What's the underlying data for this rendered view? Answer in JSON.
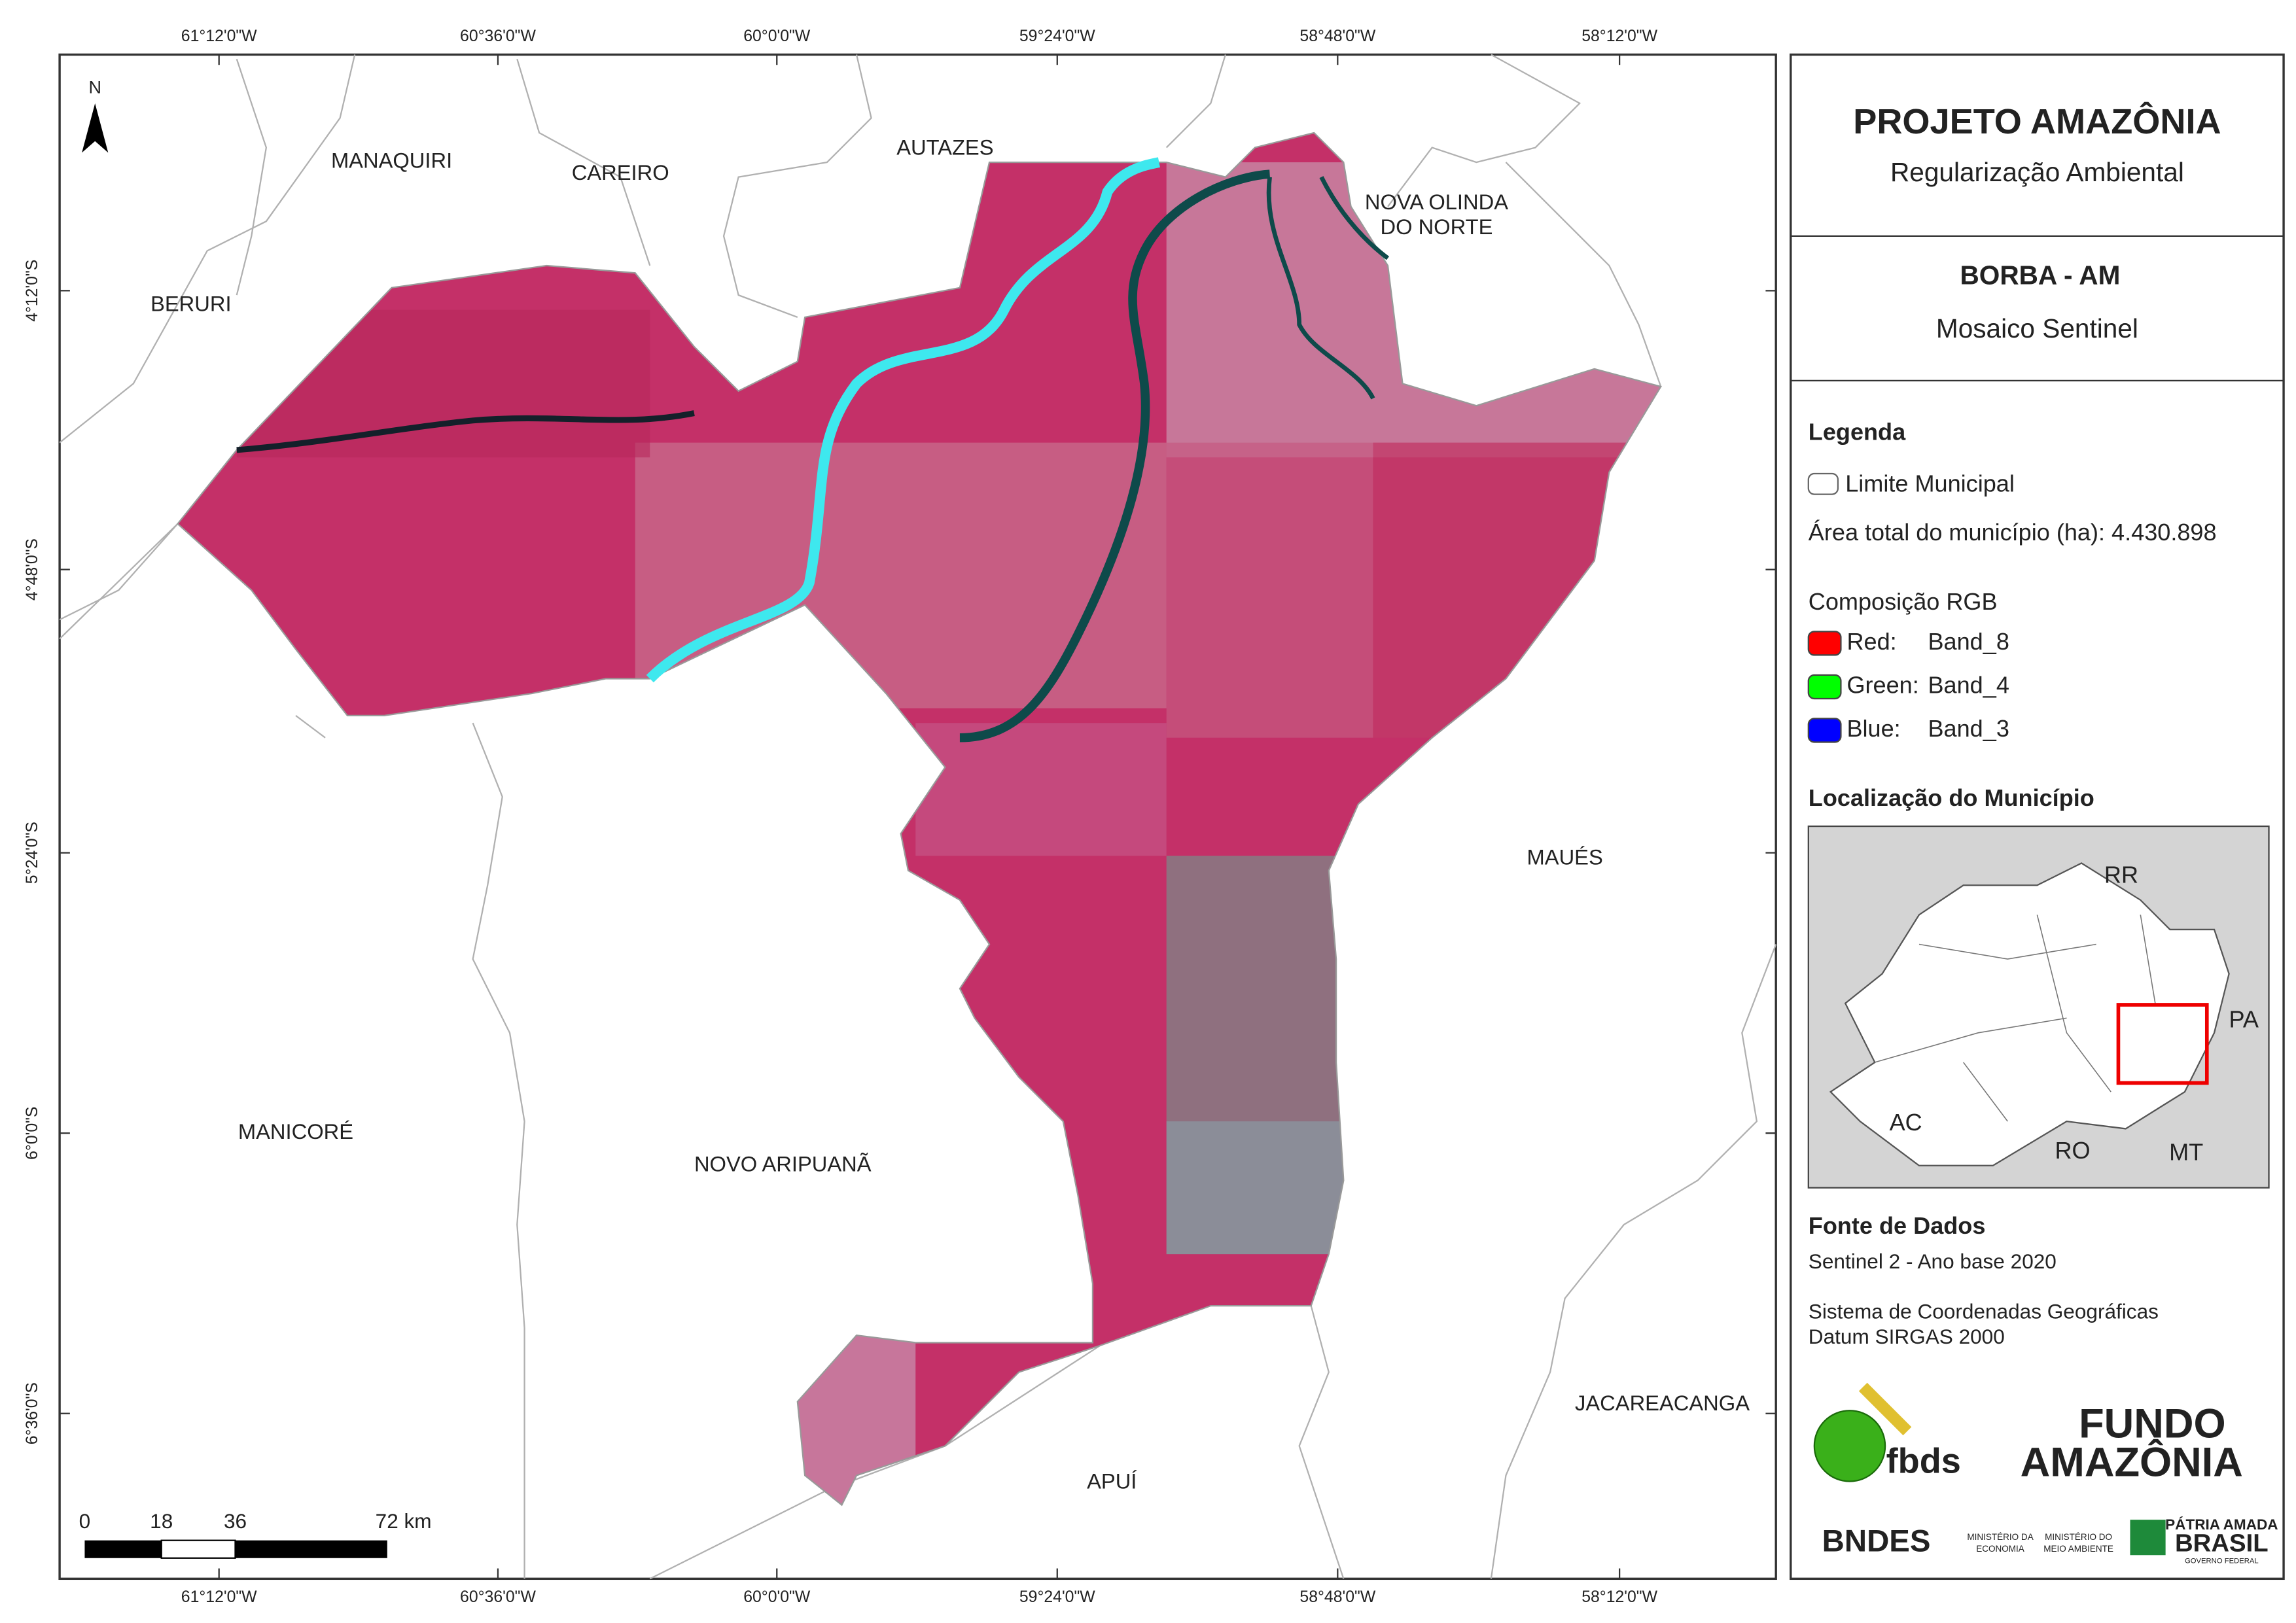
{
  "map": {
    "top_labels": [
      "61°12'0\"W",
      "60°36'0\"W",
      "60°0'0\"W",
      "59°24'0\"W",
      "58°48'0\"W",
      "58°12'0\"W"
    ],
    "bottom_labels": [
      "61°12'0\"W",
      "60°36'0\"W",
      "60°0'0\"W",
      "59°24'0\"W",
      "58°48'0\"W",
      "58°12'0\"W"
    ],
    "left_labels": [
      "4°12'0\"S",
      "4°48'0\"S",
      "5°24'0\"S",
      "6°0'0\"S",
      "6°36'0\"S"
    ],
    "municipalities": [
      "MANAQUIRI",
      "CAREIRO",
      "AUTAZES",
      "NOVA OLINDA",
      "DO NORTE",
      "BERURI",
      "MAUÉS",
      "MANICORÉ",
      "NOVO ARIPUANÃ",
      "JACAREACANGA",
      "APUÍ"
    ],
    "north": "N",
    "scale_labels": [
      "0",
      "18",
      "36",
      "72 km"
    ]
  },
  "panel": {
    "title": "PROJETO AMAZÔNIA",
    "subtitle": "Regularização Ambiental",
    "place": "BORBA - AM",
    "product": "Mosaico Sentinel",
    "legend_title": "Legenda",
    "boundary_label": "Limite Municipal",
    "area_label": "Área total do município (ha): 4.430.898",
    "rgb_title": "Composição RGB",
    "bands": [
      {
        "label": "Red:",
        "value": "Band_8",
        "color": "#ff0000"
      },
      {
        "label": "Green:",
        "value": "Band_4",
        "color": "#00ff00"
      },
      {
        "label": "Blue:",
        "value": "Band_3",
        "color": "#0000ff"
      }
    ],
    "location_title": "Localização do Município",
    "states": [
      "RR",
      "PA",
      "AC",
      "RO",
      "MT"
    ],
    "source_title": "Fonte de Dados",
    "source_lines": [
      "Sentinel 2 - Ano base 2020",
      "Sistema de Coordenadas Geográficas",
      "Datum SIRGAS 2000"
    ],
    "logos": [
      "fbds",
      "FUNDO",
      "AMAZÔNIA",
      "BNDES",
      "MINISTÉRIO DA",
      "ECONOMIA",
      "MINISTÉRIO DO",
      "MEIO AMBIENTE",
      "PÁTRIA AMADA",
      "BRASIL",
      "GOVERNO FEDERAL"
    ]
  }
}
